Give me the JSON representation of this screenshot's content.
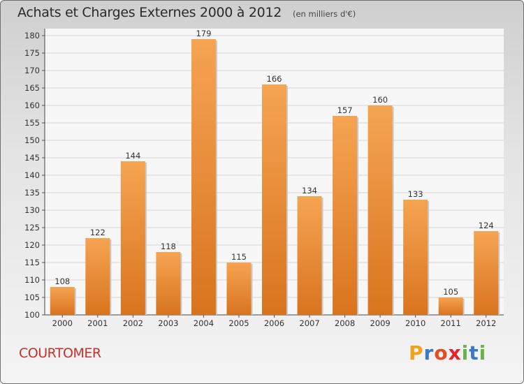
{
  "chart_data": {
    "type": "bar",
    "title": "Achats et Charges Externes 2000 à 2012",
    "subtitle": "(en milliers d'€)",
    "categories": [
      "2000",
      "2001",
      "2002",
      "2003",
      "2004",
      "2005",
      "2006",
      "2007",
      "2008",
      "2009",
      "2010",
      "2011",
      "2012"
    ],
    "values": [
      108,
      122,
      144,
      118,
      179,
      115,
      166,
      134,
      157,
      160,
      133,
      105,
      124
    ],
    "ylim": [
      100,
      180
    ],
    "yticks": [
      100,
      105,
      110,
      115,
      120,
      125,
      130,
      135,
      140,
      145,
      150,
      155,
      160,
      165,
      170,
      175,
      180
    ],
    "grid": true,
    "bar_color": "#f19a3e",
    "location": "COURTOMER"
  },
  "logo": {
    "letters": [
      "P",
      "r",
      "o",
      "x",
      "i",
      "t",
      "i"
    ],
    "colors": [
      "#f2a21b",
      "#3a79c4",
      "#e84a22",
      "#e3242b",
      "#6ab24a",
      "#3a79c4",
      "#6ab24a"
    ]
  }
}
